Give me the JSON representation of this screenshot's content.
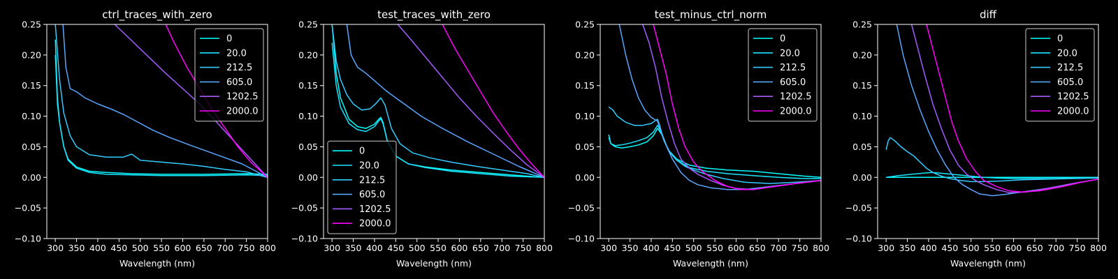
{
  "chart_data": [
    {
      "type": "line",
      "title": "ctrl_traces_with_zero",
      "xlabel": "Wavelength (nm)",
      "ylabel": "",
      "xlim": [
        280,
        800
      ],
      "ylim": [
        -0.1,
        0.25
      ],
      "xticks": [
        "300",
        "350",
        "400",
        "450",
        "500",
        "550",
        "600",
        "650",
        "700",
        "750",
        "800"
      ],
      "yticks": [
        "−0.10",
        "−0.05",
        "0.00",
        "0.05",
        "0.10",
        "0.15",
        "0.20",
        "0.25"
      ],
      "legend_position": "top-right",
      "grid": false,
      "series": [
        {
          "name": "0",
          "color": "#00ffff",
          "x": [
            300,
            305,
            310,
            320,
            330,
            350,
            380,
            420,
            480,
            550,
            650,
            750,
            800
          ],
          "y": [
            0.225,
            0.13,
            0.09,
            0.05,
            0.03,
            0.017,
            0.01,
            0.008,
            0.006,
            0.005,
            0.005,
            0.006,
            0.005
          ]
        },
        {
          "name": "20.0",
          "color": "#1ae5ff",
          "x": [
            300,
            305,
            310,
            320,
            330,
            350,
            380,
            420,
            480,
            550,
            650,
            750,
            800
          ],
          "y": [
            0.2,
            0.12,
            0.09,
            0.05,
            0.028,
            0.015,
            0.008,
            0.005,
            0.004,
            0.003,
            0.003,
            0.004,
            0.003
          ]
        },
        {
          "name": "212.5",
          "color": "#33ccff",
          "x": [
            300,
            310,
            320,
            335,
            350,
            380,
            420,
            460,
            480,
            500,
            550,
            600,
            650,
            700,
            750,
            800
          ],
          "y": [
            0.25,
            0.16,
            0.105,
            0.068,
            0.05,
            0.037,
            0.033,
            0.033,
            0.038,
            0.028,
            0.025,
            0.022,
            0.018,
            0.013,
            0.009,
            0.0
          ]
        },
        {
          "name": "605.0",
          "color": "#59a6ff",
          "x": [
            318,
            325,
            335,
            350,
            370,
            400,
            430,
            460,
            490,
            530,
            570,
            620,
            680,
            740,
            800
          ],
          "y": [
            0.25,
            0.18,
            0.145,
            0.14,
            0.13,
            0.12,
            0.112,
            0.103,
            0.092,
            0.077,
            0.065,
            0.052,
            0.037,
            0.022,
            0.0
          ]
        },
        {
          "name": "1202.5",
          "color": "#a65aff",
          "x": [
            440,
            470,
            500,
            530,
            560,
            600,
            640,
            680,
            720,
            760,
            800
          ],
          "y": [
            0.25,
            0.23,
            0.21,
            0.19,
            0.17,
            0.145,
            0.12,
            0.09,
            0.06,
            0.03,
            0.0
          ]
        },
        {
          "name": "2000.0",
          "color": "#ff00ff",
          "x": [
            560,
            580,
            610,
            640,
            670,
            700,
            730,
            760,
            800
          ],
          "y": [
            0.25,
            0.22,
            0.18,
            0.145,
            0.11,
            0.08,
            0.05,
            0.025,
            0.0
          ]
        }
      ]
    },
    {
      "type": "line",
      "title": "test_traces_with_zero",
      "xlabel": "Wavelength (nm)",
      "ylabel": "",
      "xlim": [
        280,
        800
      ],
      "ylim": [
        -0.1,
        0.25
      ],
      "xticks": [
        "300",
        "350",
        "400",
        "450",
        "500",
        "550",
        "600",
        "650",
        "700",
        "750",
        "800"
      ],
      "yticks": [
        "−0.10",
        "−0.05",
        "0.00",
        "0.05",
        "0.10",
        "0.15",
        "0.20",
        "0.25"
      ],
      "legend_position": "lower-left",
      "grid": false,
      "series": [
        {
          "name": "0",
          "color": "#00ffff",
          "x": [
            300,
            310,
            320,
            340,
            360,
            380,
            400,
            410,
            415,
            420,
            430,
            450,
            480,
            520,
            580,
            650,
            720,
            800
          ],
          "y": [
            0.25,
            0.17,
            0.13,
            0.095,
            0.083,
            0.08,
            0.087,
            0.095,
            0.098,
            0.09,
            0.06,
            0.035,
            0.022,
            0.017,
            0.012,
            0.008,
            0.004,
            0.0
          ]
        },
        {
          "name": "20.0",
          "color": "#1ae5ff",
          "x": [
            300,
            310,
            320,
            340,
            360,
            380,
            400,
            410,
            415,
            420,
            430,
            450,
            480,
            520,
            580,
            650,
            720,
            800
          ],
          "y": [
            0.22,
            0.15,
            0.115,
            0.088,
            0.078,
            0.075,
            0.083,
            0.092,
            0.096,
            0.088,
            0.06,
            0.035,
            0.022,
            0.016,
            0.01,
            0.006,
            0.002,
            0.0
          ]
        },
        {
          "name": "212.5",
          "color": "#33ccff",
          "x": [
            300,
            310,
            320,
            335,
            350,
            370,
            390,
            405,
            415,
            425,
            440,
            460,
            490,
            530,
            580,
            640,
            700,
            760,
            800
          ],
          "y": [
            0.25,
            0.19,
            0.16,
            0.135,
            0.12,
            0.11,
            0.112,
            0.122,
            0.13,
            0.118,
            0.08,
            0.055,
            0.04,
            0.032,
            0.025,
            0.018,
            0.012,
            0.006,
            0.0
          ]
        },
        {
          "name": "605.0",
          "color": "#59a6ff",
          "x": [
            335,
            345,
            360,
            380,
            400,
            430,
            470,
            510,
            560,
            620,
            680,
            740,
            800
          ],
          "y": [
            0.25,
            0.2,
            0.18,
            0.17,
            0.158,
            0.14,
            0.12,
            0.1,
            0.08,
            0.058,
            0.038,
            0.018,
            0.0
          ]
        },
        {
          "name": "1202.5",
          "color": "#a65aff",
          "x": [
            455,
            480,
            510,
            540,
            570,
            600,
            640,
            680,
            720,
            760,
            800
          ],
          "y": [
            0.25,
            0.23,
            0.205,
            0.18,
            0.155,
            0.13,
            0.1,
            0.072,
            0.045,
            0.02,
            0.0
          ]
        },
        {
          "name": "2000.0",
          "color": "#ff00ff",
          "x": [
            560,
            590,
            620,
            650,
            680,
            710,
            740,
            770,
            800
          ],
          "y": [
            0.25,
            0.21,
            0.175,
            0.14,
            0.105,
            0.075,
            0.047,
            0.022,
            0.0
          ]
        }
      ]
    },
    {
      "type": "line",
      "title": "test_minus_ctrl_norm",
      "xlabel": "Wavelength (nm)",
      "ylabel": "",
      "xlim": [
        280,
        800
      ],
      "ylim": [
        -0.1,
        0.25
      ],
      "xticks": [
        "300",
        "350",
        "400",
        "450",
        "500",
        "550",
        "600",
        "650",
        "700",
        "750",
        "800"
      ],
      "yticks": [
        "−0.10",
        "−0.05",
        "0.00",
        "0.05",
        "0.10",
        "0.15",
        "0.20",
        "0.25"
      ],
      "legend_position": "top-right",
      "grid": false,
      "series": [
        {
          "name": "0",
          "color": "#00ffff",
          "x": [
            300,
            305,
            315,
            330,
            350,
            370,
            390,
            405,
            415,
            425,
            440,
            460,
            490,
            530,
            580,
            640,
            700,
            760,
            800
          ],
          "y": [
            0.07,
            0.055,
            0.05,
            0.048,
            0.05,
            0.053,
            0.058,
            0.068,
            0.08,
            0.07,
            0.045,
            0.03,
            0.02,
            0.015,
            0.012,
            0.01,
            0.006,
            0.002,
            0.0
          ]
        },
        {
          "name": "20.0",
          "color": "#1ae5ff",
          "x": [
            300,
            305,
            315,
            330,
            350,
            370,
            390,
            405,
            415,
            425,
            440,
            460,
            490,
            530,
            580,
            640,
            700,
            760,
            800
          ],
          "y": [
            0.065,
            0.055,
            0.052,
            0.053,
            0.056,
            0.06,
            0.065,
            0.074,
            0.085,
            0.072,
            0.045,
            0.028,
            0.016,
            0.01,
            0.006,
            0.003,
            0.0,
            -0.002,
            -0.002
          ]
        },
        {
          "name": "212.5",
          "color": "#33ccff",
          "x": [
            300,
            310,
            320,
            340,
            360,
            380,
            400,
            410,
            415,
            420,
            430,
            445,
            460,
            480,
            500,
            530,
            570,
            620,
            680,
            740,
            800
          ],
          "y": [
            0.115,
            0.11,
            0.1,
            0.09,
            0.085,
            0.085,
            0.088,
            0.093,
            0.095,
            0.085,
            0.06,
            0.04,
            0.028,
            0.018,
            0.012,
            0.005,
            -0.002,
            -0.008,
            -0.01,
            -0.008,
            -0.005
          ]
        },
        {
          "name": "605.0",
          "color": "#59a6ff",
          "x": [
            325,
            340,
            355,
            370,
            385,
            400,
            415,
            430,
            450,
            470,
            490,
            510,
            540,
            580,
            620,
            680,
            740,
            800
          ],
          "y": [
            0.25,
            0.2,
            0.16,
            0.13,
            0.11,
            0.098,
            0.092,
            0.06,
            0.03,
            0.008,
            -0.005,
            -0.012,
            -0.017,
            -0.02,
            -0.02,
            -0.015,
            -0.01,
            -0.005
          ]
        },
        {
          "name": "1202.5",
          "color": "#a65aff",
          "x": [
            380,
            395,
            410,
            425,
            440,
            455,
            470,
            490,
            510,
            540,
            570,
            600,
            640,
            690,
            740,
            800
          ],
          "y": [
            0.25,
            0.22,
            0.18,
            0.13,
            0.09,
            0.055,
            0.03,
            0.015,
            0.005,
            -0.005,
            -0.013,
            -0.018,
            -0.02,
            -0.015,
            -0.01,
            -0.005
          ]
        },
        {
          "name": "2000.0",
          "color": "#ff00ff",
          "x": [
            405,
            420,
            435,
            450,
            465,
            480,
            500,
            520,
            550,
            580,
            610,
            640,
            690,
            740,
            800
          ],
          "y": [
            0.25,
            0.21,
            0.17,
            0.12,
            0.08,
            0.05,
            0.025,
            0.01,
            -0.005,
            -0.015,
            -0.02,
            -0.02,
            -0.015,
            -0.01,
            -0.005
          ]
        }
      ]
    },
    {
      "type": "line",
      "title": "diff",
      "xlabel": "Wavelength (nm)",
      "ylabel": "",
      "xlim": [
        280,
        800
      ],
      "ylim": [
        -0.1,
        0.25
      ],
      "xticks": [
        "300",
        "350",
        "400",
        "450",
        "500",
        "550",
        "600",
        "650",
        "700",
        "750",
        "800"
      ],
      "yticks": [
        "−0.10",
        "−0.05",
        "0.00",
        "0.05",
        "0.10",
        "0.15",
        "0.20",
        "0.25"
      ],
      "legend_position": "top-right",
      "grid": false,
      "series": [
        {
          "name": "0",
          "color": "#00ffff",
          "x": [
            300,
            350,
            400,
            450,
            500,
            550,
            600,
            650,
            700,
            750,
            800
          ],
          "y": [
            0.0,
            0.0,
            0.0,
            0.0,
            0.0,
            0.0,
            0.0,
            0.0,
            0.0,
            0.0,
            0.0
          ]
        },
        {
          "name": "20.0",
          "color": "#1ae5ff",
          "x": [
            300,
            330,
            360,
            390,
            410,
            440,
            470,
            500,
            530,
            560,
            600,
            650,
            700,
            750,
            800
          ],
          "y": [
            0.0,
            0.003,
            0.005,
            0.007,
            0.008,
            0.006,
            0.004,
            0.002,
            0.0,
            -0.001,
            -0.002,
            -0.002,
            -0.002,
            -0.001,
            0.0
          ]
        },
        {
          "name": "212.5",
          "color": "#33ccff",
          "x": [
            300,
            305,
            310,
            320,
            335,
            350,
            365,
            380,
            395,
            410,
            430,
            450,
            475,
            500,
            530,
            570,
            620,
            680,
            740,
            800
          ],
          "y": [
            0.045,
            0.06,
            0.065,
            0.06,
            0.05,
            0.042,
            0.035,
            0.025,
            0.015,
            0.008,
            0.002,
            -0.002,
            -0.005,
            -0.007,
            -0.007,
            -0.006,
            -0.004,
            -0.003,
            -0.002,
            -0.001
          ]
        },
        {
          "name": "605.0",
          "color": "#59a6ff",
          "x": [
            325,
            340,
            360,
            380,
            400,
            420,
            440,
            460,
            480,
            500,
            520,
            550,
            580,
            620,
            680,
            740,
            800
          ],
          "y": [
            0.25,
            0.2,
            0.15,
            0.11,
            0.075,
            0.045,
            0.02,
            0.0,
            -0.012,
            -0.02,
            -0.027,
            -0.03,
            -0.028,
            -0.024,
            -0.018,
            -0.01,
            -0.003
          ]
        },
        {
          "name": "1202.5",
          "color": "#a65aff",
          "x": [
            360,
            375,
            390,
            410,
            430,
            450,
            470,
            490,
            510,
            530,
            560,
            590,
            630,
            680,
            740,
            800
          ],
          "y": [
            0.25,
            0.21,
            0.17,
            0.12,
            0.08,
            0.045,
            0.02,
            0.005,
            -0.005,
            -0.012,
            -0.02,
            -0.025,
            -0.024,
            -0.018,
            -0.01,
            -0.003
          ]
        },
        {
          "name": "2000.0",
          "color": "#ff00ff",
          "x": [
            395,
            410,
            425,
            440,
            455,
            470,
            490,
            510,
            530,
            560,
            590,
            620,
            660,
            710,
            760,
            800
          ],
          "y": [
            0.25,
            0.21,
            0.17,
            0.13,
            0.09,
            0.06,
            0.03,
            0.01,
            -0.005,
            -0.015,
            -0.022,
            -0.024,
            -0.022,
            -0.016,
            -0.008,
            -0.003
          ]
        }
      ]
    }
  ]
}
